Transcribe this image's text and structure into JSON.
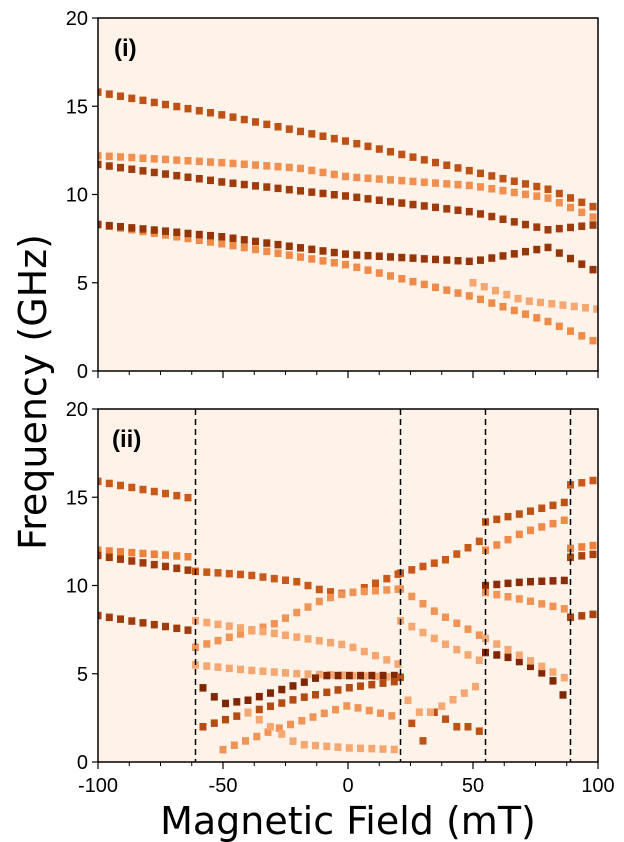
{
  "chart_data": [
    {
      "type": "heatmap",
      "panel_label": "(i)",
      "xlim": [
        -100,
        100
      ],
      "ylim": [
        0,
        20
      ],
      "yticks": [
        0,
        5,
        10,
        15,
        20
      ],
      "show_x_ticklabels": false,
      "background_color": "#fff2e8",
      "colormap": "Oranges",
      "branches": [
        {
          "x": [
            -100,
            -50,
            0,
            50,
            80,
            100
          ],
          "y": [
            15.8,
            14.5,
            13.0,
            11.3,
            10.3,
            9.2
          ],
          "intensity": 0.7
        },
        {
          "x": [
            -100,
            -50,
            -20,
            0,
            50,
            80,
            100
          ],
          "y": [
            12.2,
            11.8,
            11.5,
            11.0,
            10.5,
            9.8,
            8.6
          ],
          "intensity": 0.32
        },
        {
          "x": [
            -100,
            -50,
            0,
            50,
            80,
            100
          ],
          "y": [
            11.7,
            10.7,
            9.9,
            9.0,
            8.0,
            8.3
          ],
          "intensity": 0.85
        },
        {
          "x": [
            -100,
            -50,
            0,
            50,
            80,
            100
          ],
          "y": [
            8.3,
            7.2,
            6.0,
            4.2,
            2.8,
            1.6
          ],
          "intensity": 0.35
        },
        {
          "x": [
            -100,
            -50,
            0,
            50,
            80,
            100
          ],
          "y": [
            8.3,
            7.6,
            6.6,
            6.2,
            7.0,
            5.6
          ],
          "intensity": 0.9
        },
        {
          "x": [
            50,
            70,
            100
          ],
          "y": [
            5.0,
            4.0,
            3.5
          ],
          "intensity": 0.2
        }
      ]
    },
    {
      "type": "heatmap",
      "panel_label": "(ii)",
      "xlim": [
        -100,
        100
      ],
      "ylim": [
        0,
        20
      ],
      "xticks": [
        -100,
        -50,
        0,
        50,
        100
      ],
      "yticks": [
        0,
        5,
        10,
        15,
        20
      ],
      "show_x_ticklabels": true,
      "background_color": "#fff2e8",
      "colormap": "Oranges",
      "dashed_vlines": [
        -61,
        21,
        55,
        89
      ],
      "branches": [
        {
          "x": [
            -100,
            -61
          ],
          "y": [
            15.9,
            14.9
          ],
          "intensity": 0.65
        },
        {
          "x": [
            -100,
            -61
          ],
          "y": [
            12.0,
            11.6
          ],
          "intensity": 0.4
        },
        {
          "x": [
            -100,
            -61
          ],
          "y": [
            11.7,
            10.8
          ],
          "intensity": 0.85
        },
        {
          "x": [
            -100,
            -61
          ],
          "y": [
            8.3,
            7.4
          ],
          "intensity": 0.85
        },
        {
          "x": [
            -61,
            -40,
            -20,
            -10,
            0,
            21
          ],
          "y": [
            10.8,
            10.6,
            10.2,
            9.7,
            9.5,
            10.7
          ],
          "intensity": 0.65
        },
        {
          "x": [
            -61,
            -30,
            -10,
            0,
            21
          ],
          "y": [
            6.5,
            7.8,
            9.2,
            9.6,
            9.8
          ],
          "intensity": 0.3
        },
        {
          "x": [
            -61,
            -30,
            0,
            21
          ],
          "y": [
            8.0,
            7.3,
            6.6,
            5.5
          ],
          "intensity": 0.2
        },
        {
          "x": [
            -61,
            -40,
            -20,
            0,
            21
          ],
          "y": [
            5.5,
            5.2,
            5.0,
            4.9,
            4.8
          ],
          "intensity": 0.2
        },
        {
          "x": [
            -58,
            -50,
            -40,
            -20,
            -10,
            21
          ],
          "y": [
            4.2,
            3.3,
            3.5,
            4.4,
            4.9,
            4.9
          ],
          "intensity": 1.0
        },
        {
          "x": [
            -58,
            -40,
            -20,
            0,
            21
          ],
          "y": [
            2.0,
            2.8,
            3.6,
            4.2,
            4.6
          ],
          "intensity": 0.75
        },
        {
          "x": [
            -50,
            -30,
            0,
            21
          ],
          "y": [
            0.7,
            1.8,
            3.2,
            2.5
          ],
          "intensity": 0.3
        },
        {
          "x": [
            -40,
            -20,
            0,
            21
          ],
          "y": [
            2.8,
            1.0,
            0.8,
            0.7
          ],
          "intensity": 0.2
        },
        {
          "x": [
            21,
            40,
            55
          ],
          "y": [
            10.7,
            11.5,
            12.7
          ],
          "intensity": 0.65
        },
        {
          "x": [
            21,
            35,
            55
          ],
          "y": [
            9.8,
            8.5,
            7.0
          ],
          "intensity": 0.3
        },
        {
          "x": [
            21,
            40,
            55
          ],
          "y": [
            8.0,
            6.6,
            5.6
          ],
          "intensity": 0.2
        },
        {
          "x": [
            21,
            25,
            30,
            35,
            42,
            50,
            55
          ],
          "y": [
            4.8,
            2.3,
            1.2,
            3.0,
            2.0,
            2.0,
            1.5
          ],
          "intensity": 0.7
        },
        {
          "x": [
            24,
            30,
            38,
            55
          ],
          "y": [
            3.5,
            2.6,
            3.2,
            4.6
          ],
          "intensity": 0.2
        },
        {
          "x": [
            55,
            70,
            89
          ],
          "y": [
            13.6,
            14.1,
            14.8
          ],
          "intensity": 0.7
        },
        {
          "x": [
            55,
            70,
            89
          ],
          "y": [
            12.0,
            13.0,
            13.8
          ],
          "intensity": 0.35
        },
        {
          "x": [
            55,
            70,
            89
          ],
          "y": [
            10.0,
            10.2,
            10.3
          ],
          "intensity": 0.95
        },
        {
          "x": [
            55,
            70,
            89
          ],
          "y": [
            9.6,
            9.2,
            8.6
          ],
          "intensity": 0.3
        },
        {
          "x": [
            55,
            65,
            75,
            82
          ],
          "y": [
            6.2,
            5.9,
            5.3,
            4.6
          ],
          "intensity": 1.0
        },
        {
          "x": [
            86,
            89
          ],
          "y": [
            3.8,
            3.6
          ],
          "intensity": 1.0
        },
        {
          "x": [
            55,
            89
          ],
          "y": [
            7.0,
            4.6
          ],
          "intensity": 0.2
        },
        {
          "x": [
            89,
            100
          ],
          "y": [
            15.7,
            16.0
          ],
          "intensity": 0.65
        },
        {
          "x": [
            89,
            100
          ],
          "y": [
            12.1,
            12.3
          ],
          "intensity": 0.4
        },
        {
          "x": [
            89,
            100
          ],
          "y": [
            11.6,
            11.8
          ],
          "intensity": 0.8
        },
        {
          "x": [
            89,
            100
          ],
          "y": [
            8.2,
            8.4
          ],
          "intensity": 0.8
        }
      ]
    }
  ],
  "axis_titles": {
    "xlabel": "Magnetic Field (mT)",
    "ylabel": "Frequency (GHz)"
  }
}
